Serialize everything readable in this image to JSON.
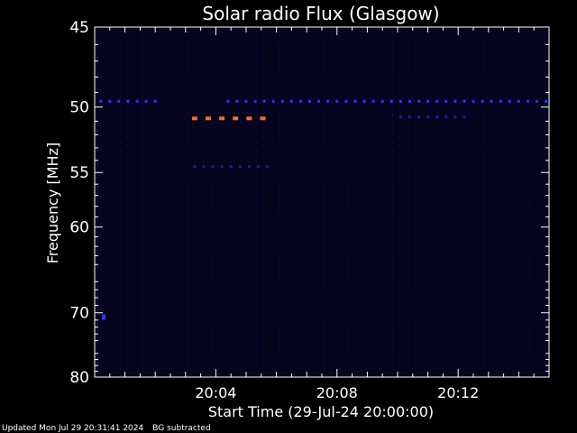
{
  "chart_data": {
    "type": "heatmap",
    "title": "Solar radio Flux (Glasgow)",
    "xlabel": "Start Time (29-Jul-24 20:00:00)",
    "ylabel": "Frequency [MHz]",
    "x_unit": "minutes after 20:00",
    "xlim": [
      0.0,
      15.0
    ],
    "x_ticks": [
      {
        "value": 4,
        "label": "20:04"
      },
      {
        "value": 8,
        "label": "20:08"
      },
      {
        "value": 12,
        "label": "20:12"
      }
    ],
    "y_scale": "reciprocal",
    "ylim": [
      45,
      80
    ],
    "y_ticks": [
      {
        "value": 45,
        "label": "45"
      },
      {
        "value": 50,
        "label": "50"
      },
      {
        "value": 55,
        "label": "55"
      },
      {
        "value": 60,
        "label": "60"
      },
      {
        "value": 70,
        "label": "70"
      },
      {
        "value": 80,
        "label": "80"
      }
    ],
    "colors": {
      "background": "#000000",
      "axes": "#ffffff",
      "plot_bg": "#05051e",
      "weak": "#1a1aa0",
      "medium": "#3333ff",
      "strong": "#ff6a2a"
    },
    "features": [
      {
        "name": "interference-band",
        "frequency": 49.6,
        "x_start": 0.2,
        "x_end": 15.0,
        "intensity": "medium",
        "gap": [
          2.2,
          4.1
        ]
      },
      {
        "name": "burst-band",
        "frequency": 50.8,
        "x_start": 3.3,
        "x_end": 5.9,
        "intensity": "strong"
      },
      {
        "name": "faint-band",
        "frequency": 54.5,
        "x_start": 3.3,
        "x_end": 5.9,
        "intensity": "weak"
      },
      {
        "name": "faint-band-2",
        "frequency": 50.7,
        "x_start": 10.1,
        "x_end": 12.3,
        "intensity": "weak"
      },
      {
        "name": "spot",
        "frequency": 70.6,
        "x_start": 0.3,
        "x_end": 0.35,
        "intensity": "medium"
      }
    ]
  },
  "footer": {
    "updated": "Updated Mon Jul 29 20:31:41 2024",
    "note": "BG subtracted"
  }
}
